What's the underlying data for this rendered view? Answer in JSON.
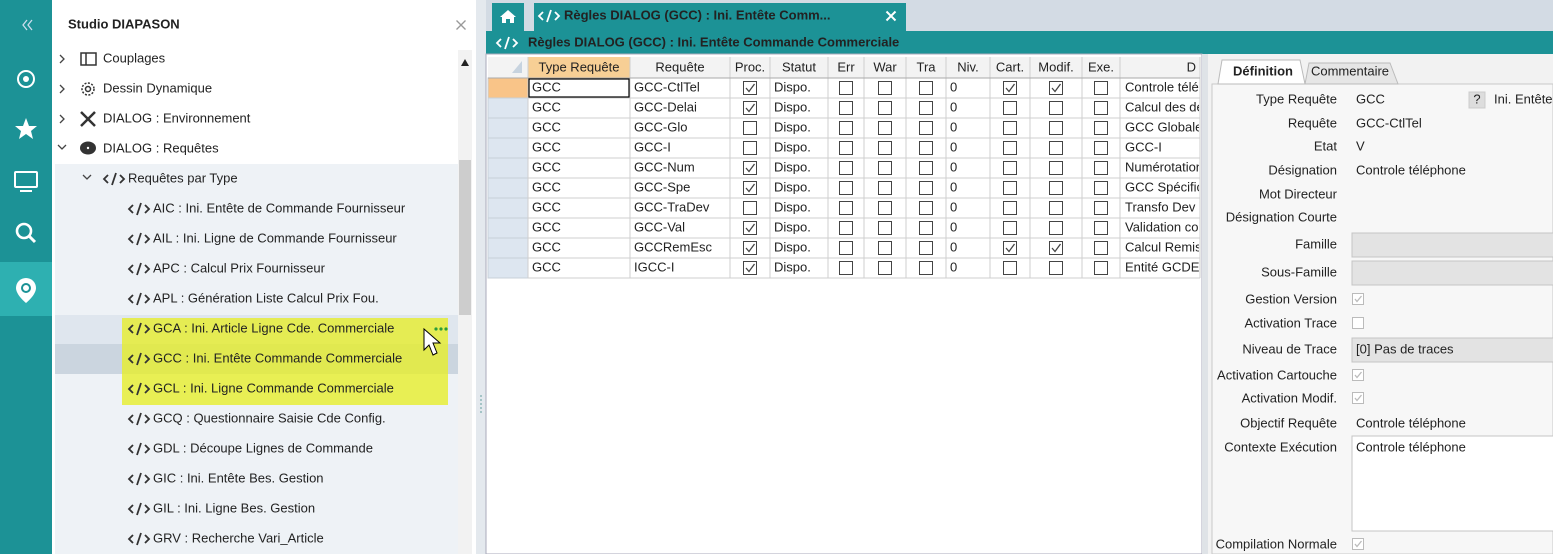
{
  "sidebar": {
    "title": "Studio DIAPASON",
    "roots": [
      "Couplages",
      "Dessin Dynamique",
      "DIALOG : Environnement",
      "DIALOG : Requêtes"
    ],
    "group": "Requêtes par Type",
    "items": [
      "AIC : Ini. Entête de Commande Fournisseur",
      "AIL : Ini. Ligne de Commande Fournisseur",
      "APC : Calcul Prix Fournisseur",
      "APL : Génération Liste Calcul Prix Fou.",
      "GCA : Ini. Article Ligne Cde. Commerciale",
      "GCC : Ini. Entête Commande Commerciale",
      "GCL : Ini. Ligne Commande Commerciale",
      "GCQ : Questionnaire Saisie Cde Config.",
      "GDL : Découpe Lignes de Commande",
      "GIC : Ini. Entête Bes. Gestion",
      "GIL : Ini. Ligne Bes. Gestion",
      "GRV : Recherche Vari_Article"
    ]
  },
  "tab": {
    "title": "Règles DIALOG (GCC) : Ini. Entête Comm..."
  },
  "panel": {
    "title": "Règles DIALOG (GCC) : Ini. Entête Commande Commerciale"
  },
  "grid": {
    "columns": [
      "Type Requête",
      "Requête",
      "Proc.",
      "Statut",
      "Err",
      "War",
      "Tra",
      "Niv.",
      "Cart.",
      "Modif.",
      "Exe.",
      "D"
    ],
    "rows": [
      [
        "GCC",
        "GCC-CtlTel",
        true,
        "Dispo.",
        false,
        false,
        false,
        0,
        true,
        true,
        false,
        "Controle télé"
      ],
      [
        "GCC",
        "GCC-Delai",
        true,
        "Dispo.",
        false,
        false,
        false,
        0,
        false,
        false,
        false,
        "Calcul des dé"
      ],
      [
        "GCC",
        "GCC-Glo",
        false,
        "Dispo.",
        false,
        false,
        false,
        0,
        false,
        false,
        false,
        "GCC Globale"
      ],
      [
        "GCC",
        "GCC-I",
        false,
        "Dispo.",
        false,
        false,
        false,
        0,
        false,
        false,
        false,
        "GCC-I"
      ],
      [
        "GCC",
        "GCC-Num",
        true,
        "Dispo.",
        false,
        false,
        false,
        0,
        false,
        false,
        false,
        "Numérotation"
      ],
      [
        "GCC",
        "GCC-Spe",
        true,
        "Dispo.",
        false,
        false,
        false,
        0,
        false,
        false,
        false,
        "GCC Spécific"
      ],
      [
        "GCC",
        "GCC-TraDev",
        false,
        "Dispo.",
        false,
        false,
        false,
        0,
        false,
        false,
        false,
        "Transfo Dev"
      ],
      [
        "GCC",
        "GCC-Val",
        true,
        "Dispo.",
        false,
        false,
        false,
        0,
        false,
        false,
        false,
        "Validation co"
      ],
      [
        "GCC",
        "GCCRemEsc",
        true,
        "Dispo.",
        false,
        false,
        false,
        0,
        true,
        true,
        false,
        "Calcul Remis"
      ],
      [
        "GCC",
        "IGCC-I",
        true,
        "Dispo.",
        false,
        false,
        false,
        0,
        false,
        false,
        false,
        "Entité GCDE"
      ]
    ]
  },
  "form": {
    "tabs": [
      "Définition",
      "Commentaire"
    ],
    "fields": [
      {
        "label": "Type Requête",
        "value": "GCC",
        "help": "?",
        "extra": "Ini. Entête"
      },
      {
        "label": "Requête",
        "value": "GCC-CtlTel"
      },
      {
        "label": "Etat",
        "value": "V"
      },
      {
        "label": "Désignation",
        "value": "Controle téléphone"
      },
      {
        "label": "Mot Directeur"
      },
      {
        "label": "Désignation Courte"
      },
      {
        "label": "Famille"
      },
      {
        "label": "Sous-Famille"
      },
      {
        "label": "Gestion Version",
        "checked": true
      },
      {
        "label": "Activation Trace",
        "checked": false
      },
      {
        "label": "Niveau de Trace",
        "value": "[0] Pas de traces"
      },
      {
        "label": "Activation Cartouche",
        "checked": true
      },
      {
        "label": "Activation Modif.",
        "checked": true
      },
      {
        "label": "Objectif Requête",
        "value": "Controle téléphone"
      },
      {
        "label": "Contexte Exécution",
        "value": "Controle téléphone"
      },
      {
        "label": "Compilation Normale",
        "checked": true
      }
    ]
  }
}
